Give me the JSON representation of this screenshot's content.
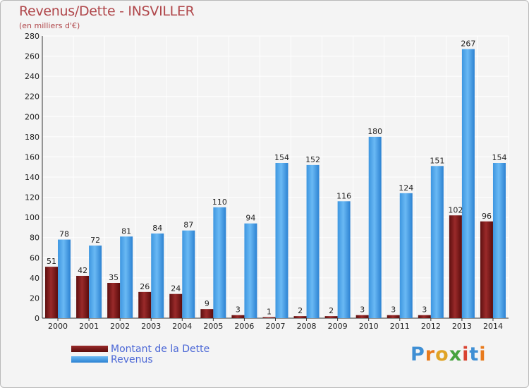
{
  "chart_data": {
    "type": "bar",
    "title": "Revenus/Dette - INSVILLER",
    "subtitle": "(en milliers d'€)",
    "categories": [
      "2000",
      "2001",
      "2002",
      "2003",
      "2004",
      "2005",
      "2006",
      "2007",
      "2008",
      "2009",
      "2010",
      "2011",
      "2012",
      "2013",
      "2014"
    ],
    "series": [
      {
        "name": "Montant de la Dette",
        "color": "#7a1616",
        "values": [
          51,
          42,
          35,
          26,
          24,
          9,
          3,
          1,
          2,
          2,
          3,
          3,
          3,
          102,
          96
        ]
      },
      {
        "name": "Revenus",
        "color": "#3d9ae6",
        "values": [
          78,
          72,
          81,
          84,
          87,
          110,
          94,
          154,
          152,
          116,
          180,
          124,
          151,
          267,
          154
        ]
      }
    ],
    "ylim": [
      0,
      280
    ],
    "yticks": [
      0,
      20,
      40,
      60,
      80,
      100,
      120,
      140,
      160,
      180,
      200,
      220,
      240,
      260,
      280
    ],
    "grid": true,
    "legend_position": "bottom-left"
  },
  "brand": {
    "letters": [
      "P",
      "r",
      "o",
      "x",
      "i",
      "t",
      "i"
    ],
    "colors": [
      "#3f8fd4",
      "#e87a1c",
      "#e0a325",
      "#46a33f",
      "#d94230",
      "#3f8fd4",
      "#e87a1c"
    ]
  }
}
